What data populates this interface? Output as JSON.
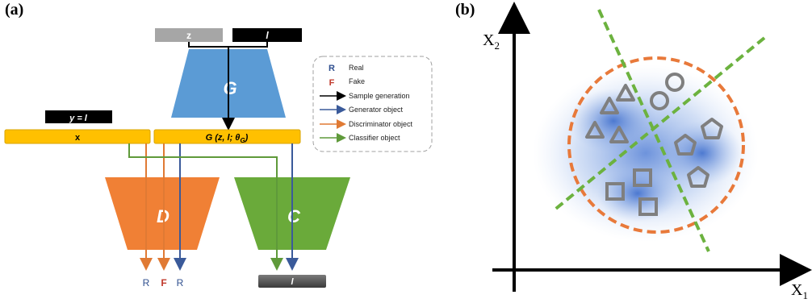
{
  "panel_a": {
    "label": "(a)",
    "inputs": {
      "z": "z",
      "l": "l"
    },
    "y_box": "y = l",
    "x_box": "x",
    "gen_box": {
      "text": "G (z, l; θ",
      "sub": "G",
      "close": ")"
    },
    "networks": {
      "generator": "G",
      "discriminator": "D",
      "classifier": "C"
    },
    "outputs": [
      "R",
      "F",
      "R"
    ],
    "class_output": "l",
    "legend": [
      {
        "key": "R",
        "label": "Real",
        "color": "#2f4f8f"
      },
      {
        "key": "F",
        "label": "Fake",
        "color": "#c0392b"
      },
      {
        "label": "Sample generation",
        "color": "#000000"
      },
      {
        "label": "Generator object",
        "color": "#3a5a9a"
      },
      {
        "label": "Discriminator object",
        "color": "#e07a34"
      },
      {
        "label": "Classifier object",
        "color": "#5f9a3a"
      }
    ],
    "colors": {
      "generator": "#5b9bd5",
      "discriminator": "#f08035",
      "classifier": "#6aaa3a",
      "bar": "#ffc000",
      "black_box": "#000000",
      "gray_box": "#a6a6a6"
    }
  },
  "panel_b": {
    "label": "(b)",
    "axis_y": {
      "base": "X",
      "sub": "2"
    },
    "axis_x": {
      "base": "X",
      "sub": "1"
    },
    "colors": {
      "circle": "#e8793a",
      "split": "#6cb23f",
      "shape": "#7f7f7f",
      "cloud": "#5b8fd9"
    }
  }
}
